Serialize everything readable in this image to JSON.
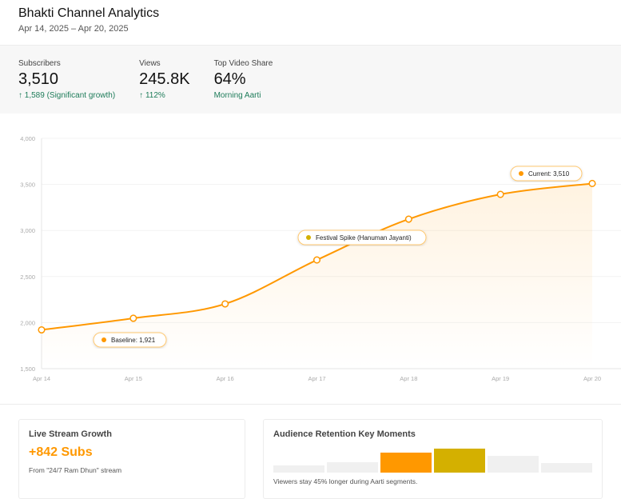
{
  "header": {
    "title": "Bhakti Channel Analytics",
    "date_range": "Apr 14, 2025 – Apr 20, 2025"
  },
  "stats": [
    {
      "label": "Subscribers",
      "value": "3,510",
      "delta": "↑ 1,589 (Significant growth)"
    },
    {
      "label": "Views",
      "value": "245.8K",
      "delta": "↑ 112%"
    },
    {
      "label": "Top Video Share",
      "value": "64%",
      "delta": "Morning Aarti"
    }
  ],
  "colors": {
    "accent": "#ff9800",
    "gold": "#d4b000",
    "positive": "#1e7c5a"
  },
  "chart_data": {
    "type": "area",
    "x": [
      "Apr 14",
      "Apr 15",
      "Apr 16",
      "Apr 17",
      "Apr 18",
      "Apr 19",
      "Apr 20"
    ],
    "series": [
      {
        "values": [
          1921,
          2047,
          2203,
          2680,
          3123,
          3392,
          3510
        ]
      }
    ],
    "ylim": [
      1500,
      4000
    ],
    "yticks": [
      "1,500",
      "2,000",
      "2,500",
      "3,000",
      "3,500",
      "4,000"
    ],
    "grid": true,
    "annotations": [
      {
        "label": "Baseline: 1,921",
        "color": "#ff9800"
      },
      {
        "label": "Festival Spike (Hanuman Jayanti)",
        "color": "#d4b000"
      },
      {
        "label": "Current: 3,510",
        "color": "#ff9800"
      }
    ]
  },
  "live": {
    "title": "Live Stream Growth",
    "value": "+842 Subs",
    "note": "From \"24/7 Ram Dhun\" stream"
  },
  "retention": {
    "title": "Audience Retention Key Moments",
    "bars": [
      9,
      13,
      25,
      30,
      21,
      12
    ],
    "bar_colors": [
      "#f0f0f0",
      "#f0f0f0",
      "#ff9800",
      "#d4b000",
      "#f0f0f0",
      "#f0f0f0"
    ],
    "note": "Viewers stay 45% longer during Aarti segments."
  }
}
